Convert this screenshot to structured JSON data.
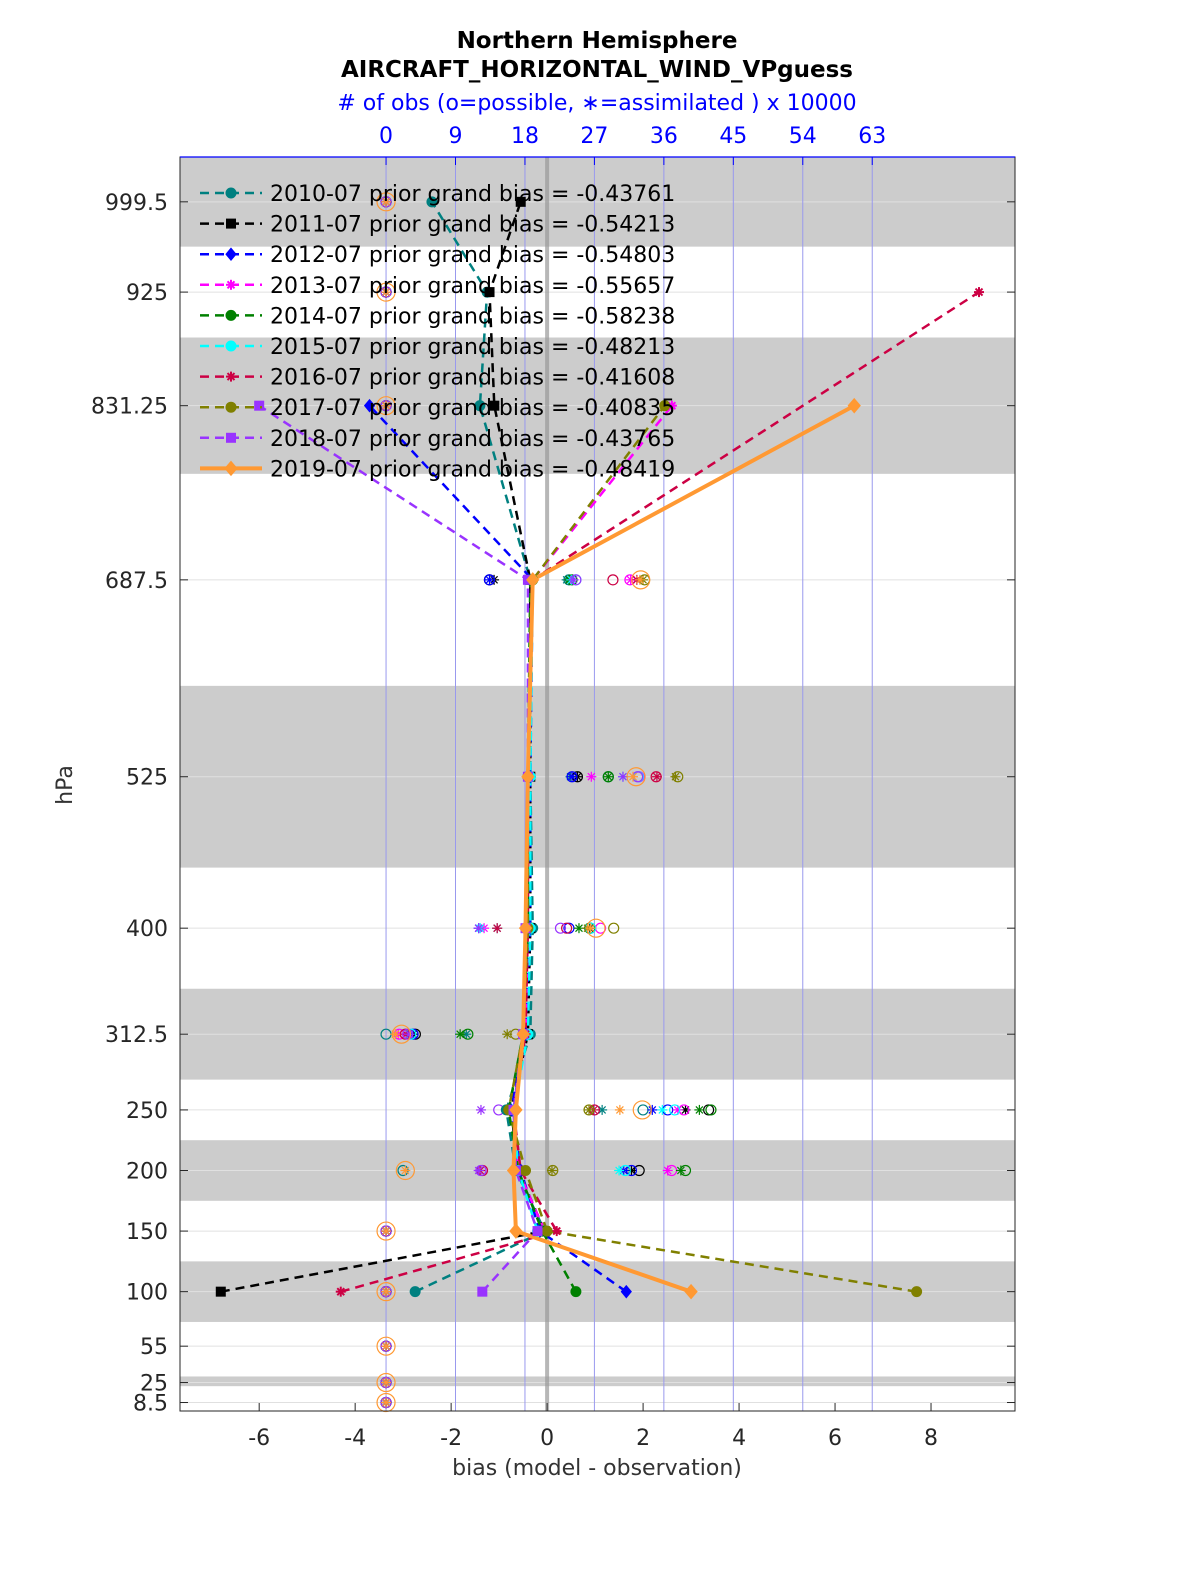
{
  "chart_data": {
    "type": "line",
    "title_line1": "Northern Hemisphere",
    "title_line2": "AIRCRAFT_HORIZONTAL_WIND_VPguess",
    "top_axis_label": "# of obs (o=possible, ∗=assimilated ) x 10000",
    "xlabel": "bias (model - observation)",
    "ylabel": "hPa",
    "xlim": [
      -7.65,
      9.75
    ],
    "top_xlim": [
      -26.7,
      81.5
    ],
    "x_ticks": [
      -6,
      -4,
      -2,
      0,
      2,
      4,
      6,
      8
    ],
    "top_ticks": [
      0,
      9,
      18,
      27,
      36,
      45,
      54,
      63
    ],
    "levels": [
      8.5,
      25,
      55,
      100,
      150,
      200,
      250,
      312.5,
      400,
      525,
      687.5,
      831.25,
      925,
      999.5
    ],
    "level_labels": [
      "8.5",
      "25",
      "55",
      "100",
      "150",
      "200",
      "250",
      "312.5",
      "400",
      "525",
      "687.5",
      "831.25",
      "925",
      "999.5"
    ],
    "shaded_bands": [
      [
        22,
        30
      ],
      [
        75,
        125
      ],
      [
        175,
        225
      ],
      [
        275,
        350
      ],
      [
        450,
        600
      ],
      [
        775,
        887.5
      ],
      [
        962.5,
        1036.5
      ]
    ],
    "colors": {
      "axis_blue": "#0000ff",
      "band": "#cccccc",
      "zero_line": "#999999"
    },
    "series": [
      {
        "name": "2010-07",
        "legend": "2010-07 prior grand bias = -0.43761",
        "color": "#008080",
        "marker": "circle",
        "dashed": true,
        "values": [
          null,
          null,
          null,
          -2.75,
          -0.05,
          -0.65,
          -0.85,
          -0.35,
          -0.3,
          -0.35,
          -0.35,
          -1.4,
          -1.25,
          -2.4
        ]
      },
      {
        "name": "2011-07",
        "legend": "2011-07 prior grand bias = -0.54213",
        "color": "#000000",
        "marker": "square",
        "dashed": true,
        "values": [
          null,
          null,
          null,
          -6.8,
          -0.05,
          -0.6,
          -0.75,
          -0.4,
          -0.35,
          -0.35,
          -0.35,
          -1.1,
          -1.2,
          -0.55
        ]
      },
      {
        "name": "2012-07",
        "legend": "2012-07 prior grand bias = -0.54803",
        "color": "#0000ff",
        "marker": "diamond",
        "dashed": true,
        "values": [
          null,
          null,
          null,
          1.65,
          -0.15,
          -0.55,
          -0.75,
          -0.45,
          -0.35,
          -0.35,
          -0.3,
          -3.7,
          null,
          null
        ]
      },
      {
        "name": "2013-07",
        "legend": "2013-07 prior grand bias = -0.55657",
        "color": "#ff00ff",
        "marker": "star",
        "dashed": true,
        "values": [
          null,
          null,
          null,
          null,
          -0.05,
          -0.6,
          -0.7,
          -0.45,
          -0.4,
          -0.4,
          -0.3,
          2.6,
          null,
          null
        ]
      },
      {
        "name": "2014-07",
        "legend": "2014-07 prior grand bias = -0.58238",
        "color": "#008000",
        "marker": "hexagon",
        "dashed": true,
        "values": [
          null,
          null,
          null,
          0.6,
          -0.1,
          -0.6,
          -0.8,
          -0.5,
          -0.4,
          -0.4,
          -0.35,
          null,
          null,
          null
        ]
      },
      {
        "name": "2015-07",
        "legend": "2015-07 prior grand bias = -0.48213",
        "color": "#00ffff",
        "marker": "hexagon",
        "dashed": true,
        "values": [
          null,
          null,
          null,
          null,
          -0.2,
          -0.6,
          -0.7,
          -0.4,
          -0.35,
          -0.35,
          -0.3,
          null,
          null,
          null
        ]
      },
      {
        "name": "2016-07",
        "legend": "2016-07 prior grand bias = -0.41608",
        "color": "#cc0044",
        "marker": "star",
        "dashed": true,
        "values": [
          null,
          null,
          null,
          -4.3,
          0.2,
          -0.55,
          -0.7,
          -0.45,
          -0.4,
          -0.4,
          -0.3,
          null,
          9.0,
          null
        ]
      },
      {
        "name": "2017-07",
        "legend": "2017-07 prior grand bias = -0.40835",
        "color": "#808000",
        "marker": "circle",
        "dashed": true,
        "values": [
          null,
          null,
          null,
          7.7,
          0.0,
          -0.45,
          -0.8,
          -0.5,
          -0.4,
          -0.4,
          -0.3,
          2.45,
          null,
          null
        ]
      },
      {
        "name": "2018-07",
        "legend": "2018-07 prior grand bias = -0.43765",
        "color": "#9933ff",
        "marker": "square",
        "dashed": true,
        "values": [
          null,
          null,
          null,
          -1.35,
          -0.2,
          -0.65,
          -0.7,
          -0.5,
          -0.45,
          -0.4,
          -0.4,
          -6.0,
          null,
          null
        ]
      },
      {
        "name": "2019-07",
        "legend": "2019-07 prior grand bias = -0.48419",
        "color": "#ff9933",
        "marker": "diamond",
        "dashed": false,
        "values": [
          null,
          null,
          null,
          3.0,
          -0.65,
          -0.7,
          -0.65,
          -0.5,
          -0.45,
          -0.4,
          -0.3,
          6.4,
          null,
          null
        ]
      }
    ],
    "obs_counts": [
      {
        "color": "#008080",
        "possible": [
          0,
          0,
          0,
          0,
          0,
          2.2,
          33.3,
          0.0,
          26.5,
          28.8,
          23.7,
          0,
          0,
          0
        ],
        "assimilated": [
          0,
          0,
          0,
          0,
          0,
          17.7,
          28.0,
          10.4,
          14.4,
          23.9,
          23.4,
          0,
          0,
          0
        ]
      },
      {
        "color": "#000000",
        "possible": [
          0,
          0,
          0,
          0,
          0,
          32.8,
          41.8,
          3.8,
          26.4,
          24.8,
          13.4,
          0,
          0,
          0
        ],
        "assimilated": [
          0,
          0,
          0,
          0,
          0,
          31.8,
          38.8,
          3.5,
          26.4,
          24.8,
          14.0,
          0,
          0,
          0
        ]
      },
      {
        "color": "#0000ff",
        "possible": [
          0,
          0,
          0,
          0,
          0,
          31.8,
          36.5,
          3.5,
          23.7,
          24.1,
          13.4,
          0,
          0,
          0
        ],
        "assimilated": [
          0,
          0,
          0,
          0,
          0,
          30.8,
          34.5,
          3.2,
          12.0,
          24.1,
          13.4,
          0,
          0,
          0
        ]
      },
      {
        "color": "#ff00ff",
        "possible": [
          0,
          0,
          0,
          0,
          0,
          37.0,
          38.6,
          1.7,
          27.8,
          32.8,
          31.6,
          0,
          0,
          0
        ],
        "assimilated": [
          0,
          0,
          0,
          0,
          0,
          36.5,
          37.8,
          1.6,
          12.7,
          26.6,
          31.7,
          0,
          0,
          0
        ]
      },
      {
        "color": "#008000",
        "possible": [
          0,
          0,
          0,
          0,
          0,
          38.8,
          42.1,
          10.6,
          26.4,
          28.8,
          24.1,
          0,
          0,
          0
        ],
        "assimilated": [
          0,
          0,
          0,
          0,
          0,
          38.2,
          40.6,
          9.6,
          25.0,
          28.8,
          23.7,
          0,
          0,
          0
        ]
      },
      {
        "color": "#00ffff",
        "possible": [
          0,
          0,
          0,
          0,
          0,
          31.0,
          37.4,
          3.2,
          26.5,
          32.7,
          24.6,
          0,
          0,
          0
        ],
        "assimilated": [
          0,
          0,
          0,
          0,
          0,
          30.2,
          35.8,
          3.0,
          12.2,
          30.7,
          24.0,
          0,
          0,
          0
        ]
      },
      {
        "color": "#cc0044",
        "possible": [
          0,
          0,
          0,
          0,
          0,
          12.5,
          27.0,
          2.5,
          23.4,
          35.0,
          29.4,
          0,
          0,
          0
        ],
        "assimilated": [
          0,
          0,
          0,
          0,
          0,
          12.2,
          26.9,
          2.6,
          14.4,
          35.1,
          32.5,
          0,
          0,
          0
        ]
      },
      {
        "color": "#808000",
        "possible": [
          0,
          0,
          0,
          0,
          0,
          21.6,
          26.3,
          16.8,
          29.5,
          37.8,
          33.5,
          0,
          0,
          0
        ],
        "assimilated": [
          0,
          0,
          0,
          0,
          0,
          21.5,
          26.3,
          15.7,
          26.1,
          37.5,
          33.3,
          0,
          0,
          0
        ]
      },
      {
        "color": "#9933ff",
        "possible": [
          0,
          0,
          0,
          0,
          0,
          12.3,
          14.6,
          2.8,
          22.6,
          32.6,
          24.6,
          0,
          0,
          0
        ],
        "assimilated": [
          0,
          0,
          0,
          0,
          0,
          12.0,
          12.3,
          3.0,
          12.0,
          30.7,
          24.3,
          0,
          0,
          0
        ]
      },
      {
        "color": "#ff9933",
        "possible": [
          0,
          0,
          0,
          0,
          0,
          2.5,
          33.2,
          2.0,
          27.2,
          32.4,
          33.0,
          0,
          0,
          0
        ],
        "assimilated": [
          0,
          0,
          0,
          0,
          0,
          2.5,
          30.3,
          1.2,
          26.5,
          32.0,
          32.9,
          0,
          0,
          0
        ]
      }
    ]
  }
}
